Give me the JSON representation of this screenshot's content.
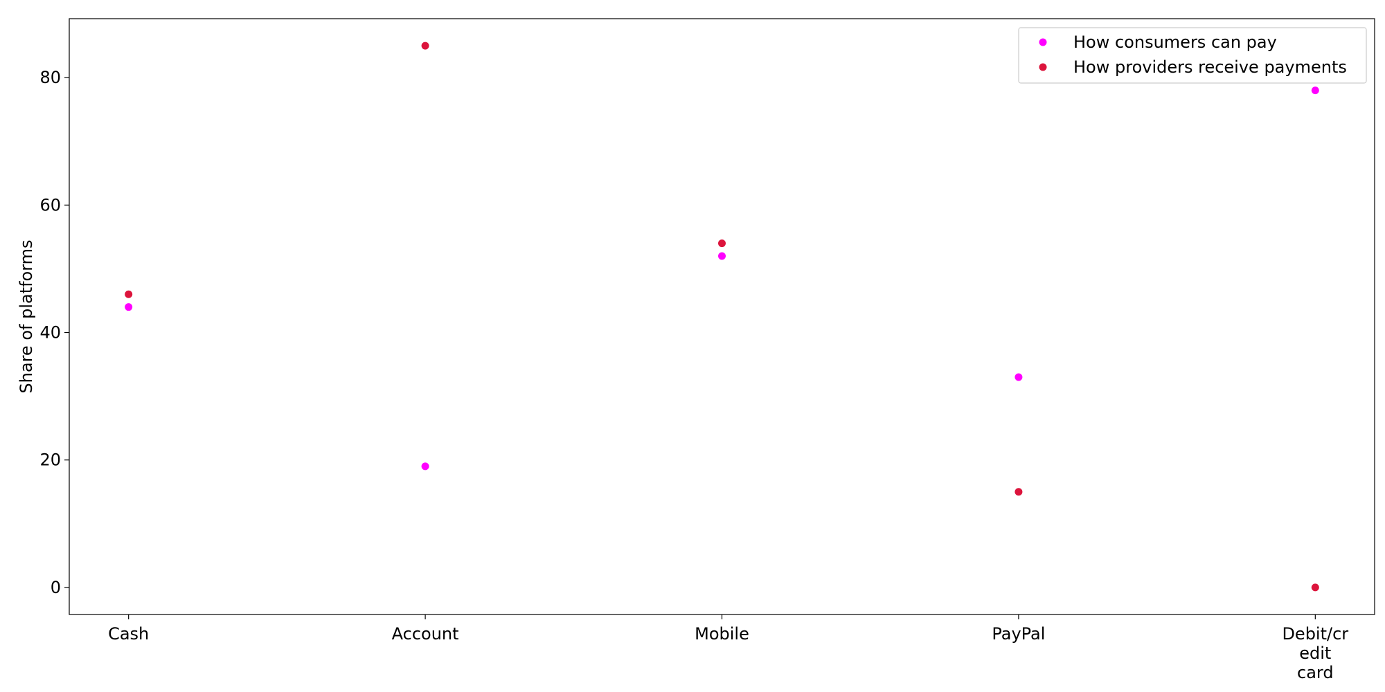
{
  "chart_data": {
    "type": "scatter",
    "title": "",
    "xlabel": "",
    "ylabel": "Share of platforms",
    "categories": [
      "Cash",
      "Account",
      "Mobile",
      "PayPal",
      "Debit/credit card"
    ],
    "category_tick_lines": [
      [
        "Cash"
      ],
      [
        "Account"
      ],
      [
        "Mobile"
      ],
      [
        "PayPal"
      ],
      [
        "Debit/cr",
        "edit",
        "card"
      ]
    ],
    "ylim": [
      -4.25,
      89.25
    ],
    "yticks": [
      0,
      20,
      40,
      60,
      80
    ],
    "grid": false,
    "legend_position": "top-right",
    "series": [
      {
        "name": "How consumers can pay",
        "color": "#ff00ff",
        "values": [
          44,
          19,
          52,
          33,
          78
        ]
      },
      {
        "name": "How providers receive payments",
        "color": "#dc143c",
        "values": [
          46,
          85,
          54,
          15,
          0
        ]
      }
    ]
  }
}
